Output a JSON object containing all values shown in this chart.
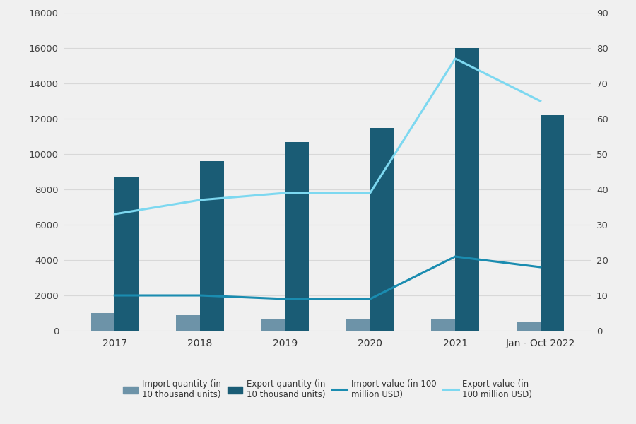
{
  "categories": [
    "2017",
    "2018",
    "2019",
    "2020",
    "2021",
    "Jan - Oct 2022"
  ],
  "import_quantity": [
    1000,
    900,
    700,
    700,
    700,
    500
  ],
  "export_quantity": [
    8700,
    9600,
    10700,
    11500,
    16000,
    12200
  ],
  "import_value": [
    10,
    10,
    9,
    9,
    21,
    18
  ],
  "export_value": [
    33,
    37,
    39,
    39,
    77,
    65
  ],
  "bar_import_color": "#6d93a8",
  "bar_export_color": "#1a5c75",
  "line_import_color": "#1a8cb0",
  "line_export_color": "#7dd8f0",
  "background_color": "#f0f0f0",
  "plot_bg_color": "#f0f0f0",
  "ylim_left": [
    0,
    18000
  ],
  "ylim_right": [
    0,
    90
  ],
  "yticks_left": [
    0,
    2000,
    4000,
    6000,
    8000,
    10000,
    12000,
    14000,
    16000,
    18000
  ],
  "yticks_right": [
    0,
    10,
    20,
    30,
    40,
    50,
    60,
    70,
    80,
    90
  ],
  "legend_labels": [
    "Import quantity (in\n10 thousand units)",
    "Export quantity (in\n10 thousand units)",
    "Import value (in 100\nmillion USD)",
    "Export value (in\n100 million USD)"
  ],
  "fig_width": 9.0,
  "fig_height": 6.0
}
